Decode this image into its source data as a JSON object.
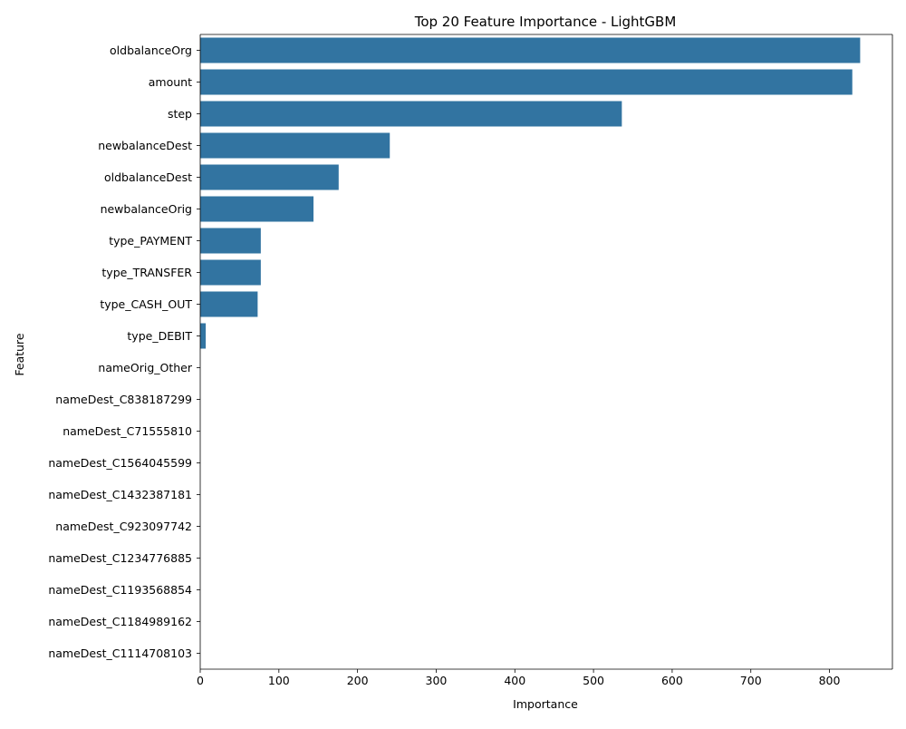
{
  "chart_data": {
    "type": "bar",
    "orientation": "horizontal",
    "title": "Top 20 Feature Importance - LightGBM",
    "xlabel": "Importance",
    "ylabel": "Feature",
    "xlim": [
      0,
      880
    ],
    "xticks": [
      0,
      100,
      200,
      300,
      400,
      500,
      600,
      700,
      800
    ],
    "grid": false,
    "bar_color": "#3274a1",
    "categories": [
      "oldbalanceOrg",
      "amount",
      "step",
      "newbalanceDest",
      "oldbalanceDest",
      "newbalanceOrig",
      "type_PAYMENT",
      "type_TRANSFER",
      "type_CASH_OUT",
      "type_DEBIT",
      "nameOrig_Other",
      "nameDest_C838187299",
      "nameDest_C71555810",
      "nameDest_C1564045599",
      "nameDest_C1432387181",
      "nameDest_C923097742",
      "nameDest_C1234776885",
      "nameDest_C1193568854",
      "nameDest_C1184989162",
      "nameDest_C1114708103"
    ],
    "values": [
      839,
      829,
      536,
      241,
      176,
      144,
      77,
      77,
      73,
      7,
      0,
      0,
      0,
      0,
      0,
      0,
      0,
      0,
      0,
      0
    ]
  }
}
